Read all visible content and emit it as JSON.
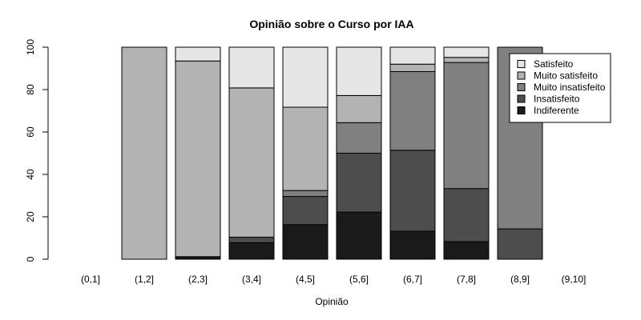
{
  "chart_data": {
    "type": "bar",
    "stacked": true,
    "title": "Opinião sobre o Curso por IAA",
    "xlabel": "Opinião",
    "ylabel": "",
    "ylim": [
      0,
      100
    ],
    "yticks": [
      0,
      20,
      40,
      60,
      80,
      100
    ],
    "categories": [
      "(0,1]",
      "(1,2]",
      "(2,3]",
      "(3,4]",
      "(4,5]",
      "(5,6]",
      "(6,7]",
      "(7,8]",
      "(8,9]",
      "(9,10]"
    ],
    "series": [
      {
        "name": "Indiferente",
        "color": "#1a1a1a",
        "values": [
          0,
          0,
          1.2,
          7.8,
          16.3,
          22.2,
          13.2,
          8.3,
          0,
          0
        ]
      },
      {
        "name": "Insatisfeito",
        "color": "#4d4d4d",
        "values": [
          0,
          0,
          0,
          2.6,
          13.3,
          27.8,
          38.2,
          25.0,
          14.3,
          0
        ]
      },
      {
        "name": "Muito insatisfeito",
        "color": "#808080",
        "values": [
          0,
          0,
          0,
          0,
          2.8,
          14.4,
          37.1,
          59.5,
          85.7,
          0
        ]
      },
      {
        "name": "Muito satisfeito",
        "color": "#b3b3b3",
        "values": [
          0,
          100,
          92.3,
          70.4,
          39.3,
          12.8,
          3.5,
          2.4,
          0,
          0
        ]
      },
      {
        "name": "Satisfeito",
        "color": "#e6e6e6",
        "values": [
          0,
          0,
          6.5,
          19.2,
          28.3,
          22.8,
          8.0,
          4.8,
          0,
          0
        ]
      }
    ],
    "legend": {
      "position": "top-right",
      "order": [
        "Satisfeito",
        "Muito satisfeito",
        "Muito insatisfeito",
        "Insatisfeito",
        "Indiferente"
      ]
    },
    "grid": false
  }
}
